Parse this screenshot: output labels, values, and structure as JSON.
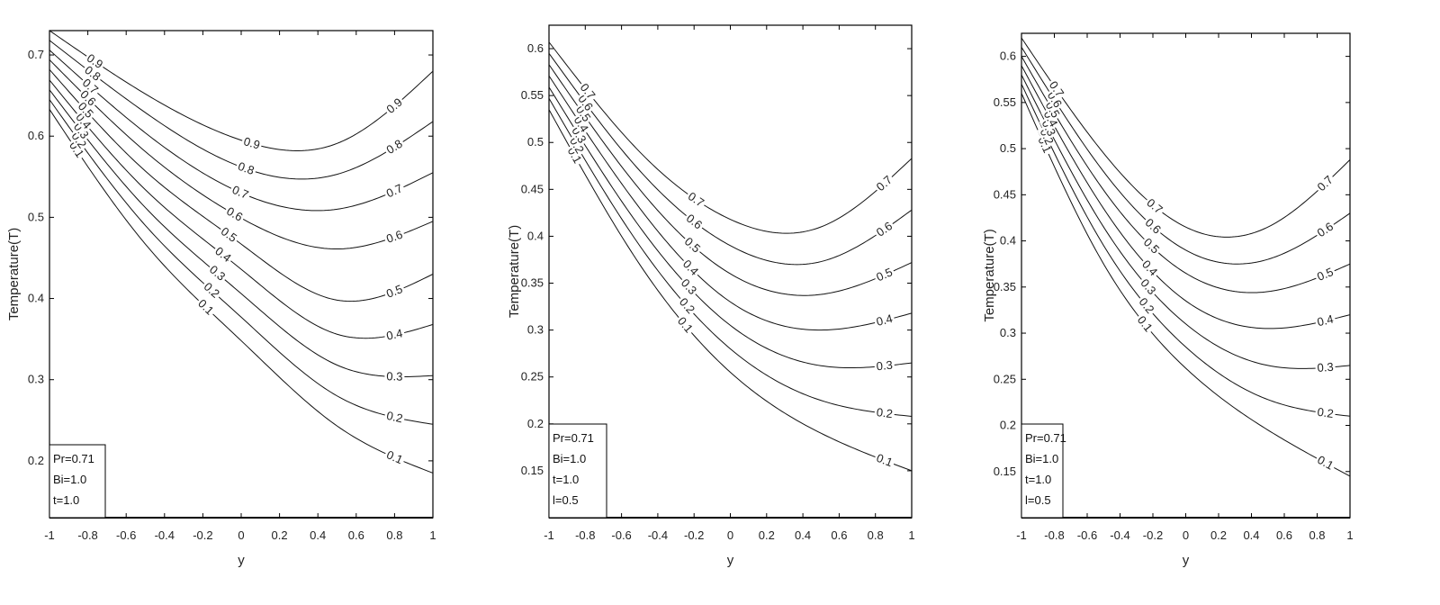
{
  "chart_data": [
    {
      "type": "line",
      "xlabel": "y",
      "ylabel": "Temperature(T)",
      "xlim": [
        -1,
        1
      ],
      "ylim": [
        0.13,
        0.73
      ],
      "xticks": [
        -1,
        -0.8,
        -0.6,
        -0.4,
        -0.2,
        0,
        0.2,
        0.4,
        0.6,
        0.8,
        1
      ],
      "xtick_labels": [
        "-1",
        "-0.8",
        "-0.6",
        "-0.4",
        "-0.2",
        "0",
        "0.2",
        "0.4",
        "0.6",
        "0.8",
        "1"
      ],
      "yticks": [
        0.2,
        0.3,
        0.4,
        0.5,
        0.6,
        0.7
      ],
      "ytick_labels": [
        "0.2",
        "0.3",
        "0.4",
        "0.5",
        "0.6",
        "0.7"
      ],
      "legend": {
        "placement": "bottom-left",
        "lines": [
          "Pr=0.71",
          "Bi=1.0",
          "t=1.0"
        ]
      },
      "series": [
        {
          "name": "0.1",
          "x": [
            -1,
            -0.5,
            0,
            0.5,
            1
          ],
          "y": [
            0.633,
            0.467,
            0.348,
            0.243,
            0.185
          ]
        },
        {
          "name": "0.2",
          "x": [
            -1,
            -0.5,
            0,
            0.5,
            1
          ],
          "y": [
            0.645,
            0.49,
            0.377,
            0.28,
            0.245
          ]
        },
        {
          "name": "0.3",
          "x": [
            -1,
            -0.5,
            0,
            0.5,
            1
          ],
          "y": [
            0.657,
            0.512,
            0.406,
            0.318,
            0.305
          ]
        },
        {
          "name": "0.4",
          "x": [
            -1,
            -0.5,
            0,
            0.5,
            1
          ],
          "y": [
            0.669,
            0.534,
            0.436,
            0.356,
            0.368
          ]
        },
        {
          "name": "0.5",
          "x": [
            -1,
            -0.5,
            0,
            0.5,
            1
          ],
          "y": [
            0.682,
            0.557,
            0.467,
            0.398,
            0.43
          ]
        },
        {
          "name": "0.6",
          "x": [
            -1,
            -0.5,
            0,
            0.5,
            1
          ],
          "y": [
            0.694,
            0.581,
            0.499,
            0.461,
            0.495
          ]
        },
        {
          "name": "0.7",
          "x": [
            -1,
            -0.5,
            0,
            0.5,
            1
          ],
          "y": [
            0.706,
            0.604,
            0.53,
            0.51,
            0.555
          ]
        },
        {
          "name": "0.8",
          "x": [
            -1,
            -0.5,
            0,
            0.5,
            1
          ],
          "y": [
            0.718,
            0.629,
            0.562,
            0.553,
            0.618
          ]
        },
        {
          "name": "0.9",
          "x": [
            -1,
            -0.5,
            0,
            0.5,
            1
          ],
          "y": [
            0.73,
            0.652,
            0.595,
            0.591,
            0.68
          ]
        }
      ]
    },
    {
      "type": "line",
      "xlabel": "y",
      "ylabel": "Temperature(T)",
      "xlim": [
        -1,
        1
      ],
      "ylim": [
        0.1,
        0.625
      ],
      "xticks": [
        -1,
        -0.8,
        -0.6,
        -0.4,
        -0.2,
        0,
        0.2,
        0.4,
        0.6,
        0.8,
        1
      ],
      "xtick_labels": [
        "-1",
        "-0.8",
        "-0.6",
        "-0.4",
        "-0.2",
        "0",
        "0.2",
        "0.4",
        "0.6",
        "0.8",
        "1"
      ],
      "yticks": [
        0.15,
        0.2,
        0.25,
        0.3,
        0.35,
        0.4,
        0.45,
        0.5,
        0.55,
        0.6
      ],
      "ytick_labels": [
        "0.15",
        "0.2",
        "0.25",
        "0.3",
        "0.35",
        "0.4",
        "0.45",
        "0.5",
        "0.55",
        "0.6"
      ],
      "legend": {
        "placement": "bottom-left",
        "lines": [
          "Pr=0.71",
          "Bi=1.0",
          "t=1.0",
          "l=0.5"
        ]
      },
      "series": [
        {
          "name": "0.1",
          "x": [
            -1,
            -0.5,
            0,
            0.5,
            1
          ],
          "y": [
            0.535,
            0.37,
            0.255,
            0.19,
            0.15
          ]
        },
        {
          "name": "0.2",
          "x": [
            -1,
            -0.5,
            0,
            0.5,
            1
          ],
          "y": [
            0.547,
            0.39,
            0.28,
            0.225,
            0.208
          ]
        },
        {
          "name": "0.3",
          "x": [
            -1,
            -0.5,
            0,
            0.5,
            1
          ],
          "y": [
            0.559,
            0.41,
            0.305,
            0.262,
            0.265
          ]
        },
        {
          "name": "0.4",
          "x": [
            -1,
            -0.5,
            0,
            0.5,
            1
          ],
          "y": [
            0.571,
            0.43,
            0.33,
            0.3,
            0.318
          ]
        },
        {
          "name": "0.5",
          "x": [
            -1,
            -0.5,
            0,
            0.5,
            1
          ],
          "y": [
            0.583,
            0.45,
            0.36,
            0.338,
            0.372
          ]
        },
        {
          "name": "0.6",
          "x": [
            -1,
            -0.5,
            0,
            0.5,
            1
          ],
          "y": [
            0.595,
            0.47,
            0.39,
            0.373,
            0.428
          ]
        },
        {
          "name": "0.7",
          "x": [
            -1,
            -0.5,
            0,
            0.5,
            1
          ],
          "y": [
            0.607,
            0.49,
            0.418,
            0.41,
            0.483
          ]
        }
      ]
    },
    {
      "type": "line",
      "xlabel": "y",
      "ylabel": "Temperature(T)",
      "xlim": [
        -1,
        1
      ],
      "ylim": [
        0.1,
        0.625
      ],
      "xticks": [
        -1,
        -0.8,
        -0.6,
        -0.4,
        -0.2,
        0,
        0.2,
        0.4,
        0.6,
        0.8,
        1
      ],
      "xtick_labels": [
        "-1",
        "-0.8",
        "-0.6",
        "-0.4",
        "-0.2",
        "0",
        "0.2",
        "0.4",
        "0.6",
        "0.8",
        "1"
      ],
      "yticks": [
        0.15,
        0.2,
        0.25,
        0.3,
        0.35,
        0.4,
        0.45,
        0.5,
        0.55,
        0.6
      ],
      "ytick_labels": [
        "0.15",
        "0.2",
        "0.25",
        "0.3",
        "0.35",
        "0.4",
        "0.45",
        "0.5",
        "0.55",
        "0.6"
      ],
      "legend": {
        "placement": "bottom-left",
        "lines": [
          "Pr=0.71",
          "Bi=1.0",
          "t=1.0",
          "l=0.5"
        ]
      },
      "series": [
        {
          "name": "0.1",
          "x": [
            -1,
            -0.5,
            0,
            0.5,
            1
          ],
          "y": [
            0.56,
            0.375,
            0.262,
            0.195,
            0.145
          ]
        },
        {
          "name": "0.2",
          "x": [
            -1,
            -0.5,
            0,
            0.5,
            1
          ],
          "y": [
            0.57,
            0.395,
            0.285,
            0.228,
            0.21
          ]
        },
        {
          "name": "0.3",
          "x": [
            -1,
            -0.5,
            0,
            0.5,
            1
          ],
          "y": [
            0.58,
            0.415,
            0.31,
            0.265,
            0.265
          ]
        },
        {
          "name": "0.4",
          "x": [
            -1,
            -0.5,
            0,
            0.5,
            1
          ],
          "y": [
            0.59,
            0.435,
            0.335,
            0.305,
            0.32
          ]
        },
        {
          "name": "0.5",
          "x": [
            -1,
            -0.5,
            0,
            0.5,
            1
          ],
          "y": [
            0.6,
            0.455,
            0.365,
            0.345,
            0.375
          ]
        },
        {
          "name": "0.6",
          "x": [
            -1,
            -0.5,
            0,
            0.5,
            1
          ],
          "y": [
            0.61,
            0.475,
            0.39,
            0.38,
            0.43
          ]
        },
        {
          "name": "0.7",
          "x": [
            -1,
            -0.5,
            0,
            0.5,
            1
          ],
          "y": [
            0.62,
            0.495,
            0.415,
            0.415,
            0.488
          ]
        }
      ]
    }
  ]
}
